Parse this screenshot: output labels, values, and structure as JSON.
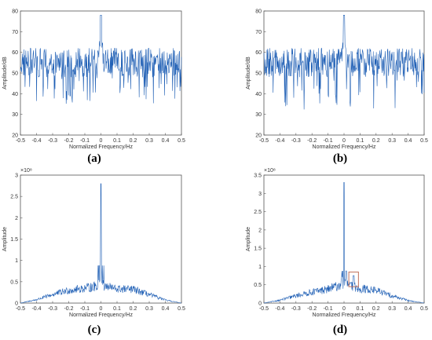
{
  "colors": {
    "series": "#1f5fb5",
    "box": "#c0705a"
  },
  "chart_data": [
    {
      "panel_label": "(a)",
      "type": "line",
      "xlabel": "Normalized Frequency/Hz",
      "ylabel": "Amplitude/dB",
      "xlim": [
        -0.5,
        0.5
      ],
      "ylim": [
        20,
        80
      ],
      "xticks": [
        "-0.5",
        "-0.4",
        "-0.3",
        "-0.2",
        "-0.1",
        "0",
        "0.1",
        "0.2",
        "0.3",
        "0.4",
        "0.5"
      ],
      "yticks": [
        "20",
        "30",
        "40",
        "50",
        "60",
        "70",
        "80"
      ],
      "multiplier": "",
      "peak": {
        "x": 0,
        "y": 78
      },
      "noise_floor_mean": 53,
      "noise_band": [
        35,
        62
      ]
    },
    {
      "panel_label": "(b)",
      "type": "line",
      "xlabel": "Normalized Frequency/Hz",
      "ylabel": "Amplitude/dB",
      "xlim": [
        -0.5,
        0.5
      ],
      "ylim": [
        20,
        80
      ],
      "xticks": [
        "-0.5",
        "-0.4",
        "-0.3",
        "-0.2",
        "-0.1",
        "0",
        "0.1",
        "0.2",
        "0.3",
        "0.4",
        "0.5"
      ],
      "yticks": [
        "20",
        "30",
        "40",
        "50",
        "60",
        "70",
        "80"
      ],
      "multiplier": "",
      "peak": {
        "x": 0,
        "y": 78
      },
      "noise_floor_mean": 53,
      "noise_band": [
        32,
        62
      ]
    },
    {
      "panel_label": "(c)",
      "type": "line",
      "xlabel": "Normalized Frequency/Hz",
      "ylabel": "Amplitude",
      "xlim": [
        -0.5,
        0.5
      ],
      "ylim": [
        0,
        3
      ],
      "xticks": [
        "-0.5",
        "-0.4",
        "-0.3",
        "-0.2",
        "-0.1",
        "0",
        "0.1",
        "0.2",
        "0.3",
        "0.4",
        "0.5"
      ],
      "yticks": [
        "0",
        "0.5",
        "1",
        "1.5",
        "2",
        "2.5",
        "3"
      ],
      "multiplier": "×10⁸",
      "peak": {
        "x": 0,
        "y": 2.8
      },
      "envelope": {
        "x": [
          -0.5,
          -0.4,
          -0.3,
          -0.2,
          -0.1,
          -0.02,
          0,
          0.02,
          0.1,
          0.2,
          0.3,
          0.4,
          0.5
        ],
        "y": [
          0.0,
          0.08,
          0.2,
          0.3,
          0.35,
          0.4,
          2.8,
          0.4,
          0.33,
          0.32,
          0.2,
          0.07,
          0.0
        ]
      }
    },
    {
      "panel_label": "(d)",
      "type": "line",
      "xlabel": "Normalized Frequency/Hz",
      "ylabel": "Amplitude",
      "xlim": [
        -0.5,
        0.5
      ],
      "ylim": [
        0,
        3.5
      ],
      "xticks": [
        "-0.5",
        "-0.4",
        "-0.3",
        "-0.2",
        "-0.1",
        "0",
        "0.1",
        "0.2",
        "0.3",
        "0.4",
        "0.5"
      ],
      "yticks": [
        "0",
        "0.5",
        "1",
        "1.5",
        "2",
        "2.5",
        "3",
        "3.5"
      ],
      "multiplier": "×10⁸",
      "peak": {
        "x": 0,
        "y": 3.3
      },
      "secondary_peak": {
        "x": 0.06,
        "y": 0.75
      },
      "highlight_box": {
        "x": [
          0.03,
          0.09
        ],
        "y": [
          0.45,
          0.85
        ]
      },
      "envelope": {
        "x": [
          -0.5,
          -0.4,
          -0.3,
          -0.2,
          -0.1,
          -0.02,
          0,
          0.02,
          0.1,
          0.2,
          0.3,
          0.4,
          0.5
        ],
        "y": [
          0.0,
          0.08,
          0.2,
          0.3,
          0.38,
          0.5,
          3.3,
          0.5,
          0.4,
          0.35,
          0.2,
          0.07,
          0.0
        ]
      }
    }
  ]
}
